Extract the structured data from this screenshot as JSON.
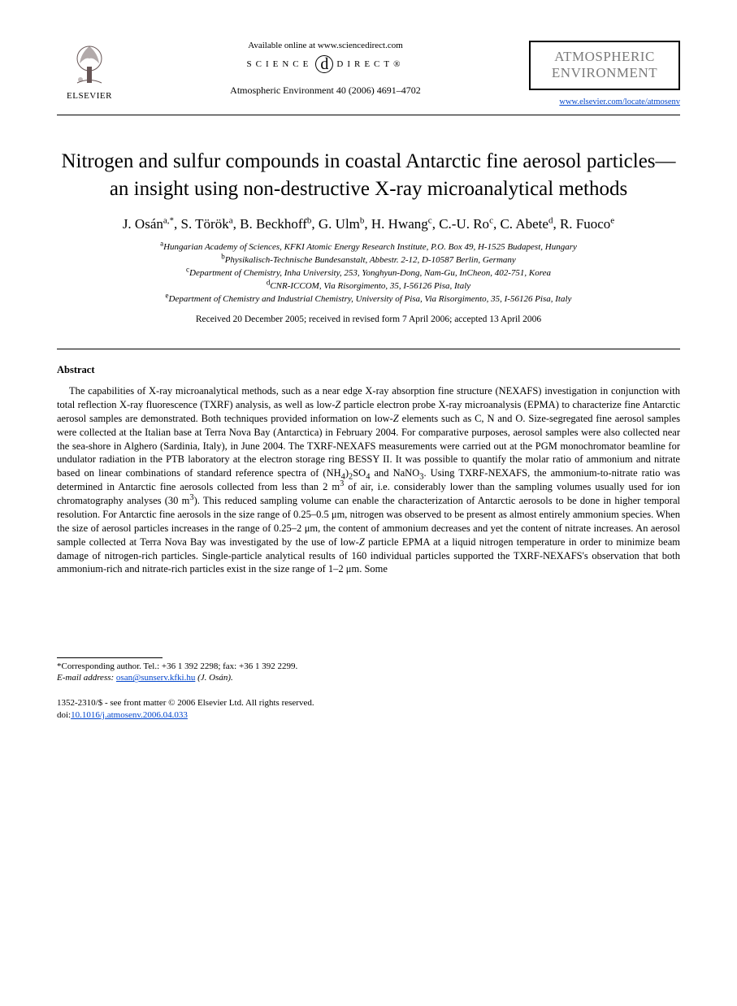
{
  "header": {
    "available_online": "Available online at www.sciencedirect.com",
    "sd_left": "SCIENCE",
    "sd_right": "DIRECT®",
    "sd_d": "d",
    "citation": "Atmospheric Environment 40 (2006) 4691–4702",
    "elsevier": "ELSEVIER",
    "journal_title_1": "ATMOSPHERIC",
    "journal_title_2": "ENVIRONMENT",
    "journal_url": "www.elsevier.com/locate/atmosenv"
  },
  "title": "Nitrogen and sulfur compounds in coastal Antarctic fine aerosol particles—an insight using non-destructive X-ray microanalytical methods",
  "authors_html": "J. Osán<sup>a,*</sup>, S. Török<sup>a</sup>, B. Beckhoff<sup>b</sup>, G. Ulm<sup>b</sup>, H. Hwang<sup>c</sup>, C.-U. Ro<sup>c</sup>, C. Abete<sup>d</sup>, R. Fuoco<sup>e</sup>",
  "affiliations": [
    {
      "sup": "a",
      "text": "Hungarian Academy of Sciences, KFKI Atomic Energy Research Institute, P.O. Box 49, H-1525 Budapest, Hungary"
    },
    {
      "sup": "b",
      "text": "Physikalisch-Technische Bundesanstalt, Abbestr. 2-12, D-10587 Berlin, Germany"
    },
    {
      "sup": "c",
      "text": "Department of Chemistry, Inha University, 253, Yonghyun-Dong, Nam-Gu, InCheon, 402-751, Korea"
    },
    {
      "sup": "d",
      "text": "CNR-ICCOM, Via Risorgimento, 35, I-56126 Pisa, Italy"
    },
    {
      "sup": "e",
      "text": "Department of Chemistry and Industrial Chemistry, University of Pisa, Via Risorgimento, 35, I-56126 Pisa, Italy"
    }
  ],
  "dates": "Received 20 December 2005; received in revised form 7 April 2006; accepted 13 April 2006",
  "abstract_heading": "Abstract",
  "abstract_html": "The capabilities of X-ray microanalytical methods, such as a near edge X-ray absorption fine structure (NEXAFS) investigation in conjunction with total reflection X-ray fluorescence (TXRF) analysis, as well as low-<span class=\"ital\">Z</span> particle electron probe X-ray microanalysis (EPMA) to characterize fine Antarctic aerosol samples are demonstrated. Both techniques provided information on low-<span class=\"ital\">Z</span> elements such as C, N and O. Size-segregated fine aerosol samples were collected at the Italian base at Terra Nova Bay (Antarctica) in February 2004. For comparative purposes, aerosol samples were also collected near the sea-shore in Alghero (Sardinia, Italy), in June 2004. The TXRF-NEXAFS measurements were carried out at the PGM monochromator beamline for undulator radiation in the PTB laboratory at the electron storage ring BESSY II. It was possible to quantify the molar ratio of ammonium and nitrate based on linear combinations of standard reference spectra of (NH<sub>4</sub>)<sub>2</sub>SO<sub>4</sub> and NaNO<sub>3</sub>. Using TXRF-NEXAFS, the ammonium-to-nitrate ratio was determined in Antarctic fine aerosols collected from less than 2 m<sup>3</sup> of air, i.e. considerably lower than the sampling volumes usually used for ion chromatography analyses (30 m<sup>3</sup>). This reduced sampling volume can enable the characterization of Antarctic aerosols to be done in higher temporal resolution. For Antarctic fine aerosols in the size range of 0.25–0.5 μm, nitrogen was observed to be present as almost entirely ammonium species. When the size of aerosol particles increases in the range of 0.25–2 μm, the content of ammonium decreases and yet the content of nitrate increases. An aerosol sample collected at Terra Nova Bay was investigated by the use of low-<span class=\"ital\">Z</span> particle EPMA at a liquid nitrogen temperature in order to minimize beam damage of nitrogen-rich particles. Single-particle analytical results of 160 individual particles supported the TXRF-NEXAFS's observation that both ammonium-rich and nitrate-rich particles exist in the size range of 1–2 μm. Some",
  "footer": {
    "corr_label": "*Corresponding author. Tel.: +36 1 392 2298; fax: +36 1 392 2299.",
    "email_label": "E-mail address:",
    "email": "osan@sunserv.kfki.hu",
    "email_author": "(J. Osán).",
    "issn_line": "1352-2310/$ - see front matter © 2006 Elsevier Ltd. All rights reserved.",
    "doi_prefix": "doi:",
    "doi": "10.1016/j.atmosenv.2006.04.033"
  }
}
